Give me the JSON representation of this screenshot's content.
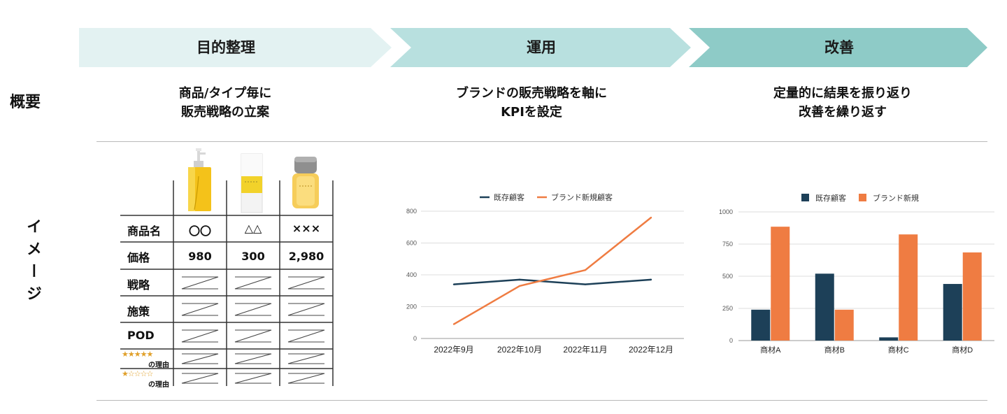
{
  "steps": [
    {
      "label": "目的整理",
      "color": "#e3f2f2"
    },
    {
      "label": "運用",
      "color": "#b8e0df"
    },
    {
      "label": "改善",
      "color": "#8ecbc7"
    }
  ],
  "rows": {
    "overview": "概要",
    "image": "イメージ"
  },
  "summaries": [
    "商品/タイプ毎に\n販売戦略の立案",
    "ブランドの販売戦略を軸に\nKPIを設定",
    "定量的に結果を振り返り\n改善を繰り返す"
  ],
  "product_table": {
    "labels": {
      "name": "商品名",
      "price": "価格",
      "strategy": "戦略",
      "measure": "施策",
      "pod": "POD",
      "five_star_reason": "の理由",
      "one_star_reason": "の理由"
    },
    "five_stars": "★★★★★",
    "one_star": "★☆☆☆☆",
    "products": [
      {
        "name": "〇〇",
        "price": "980",
        "image": "pump-bottle-icon"
      },
      {
        "name": "△△",
        "price": "300",
        "image": "cream-tube-icon"
      },
      {
        "name": "×××",
        "price": "2,980",
        "image": "serum-jar-icon"
      }
    ]
  },
  "chart_data": [
    {
      "type": "line",
      "legend_position": "top",
      "legend": [
        "既存顧客",
        "ブランド新規顧客"
      ],
      "categories": [
        "2022年9月",
        "2022年10月",
        "2022年11月",
        "2022年12月"
      ],
      "series": [
        {
          "name": "既存顧客",
          "color": "#1d4058",
          "values": [
            340,
            370,
            340,
            370
          ]
        },
        {
          "name": "ブランド新規顧客",
          "color": "#ef7c42",
          "values": [
            90,
            330,
            430,
            760
          ]
        }
      ],
      "ylim": [
        0,
        800
      ],
      "yticks": [
        0,
        200,
        400,
        600,
        800
      ],
      "grid": true
    },
    {
      "type": "bar",
      "legend_position": "top",
      "legend": [
        "既存顧客",
        "ブランド新規"
      ],
      "categories": [
        "商材A",
        "商材B",
        "商材C",
        "商材D"
      ],
      "series": [
        {
          "name": "既存顧客",
          "color": "#1d4058",
          "values": [
            240,
            520,
            25,
            440
          ]
        },
        {
          "name": "ブランド新規",
          "color": "#ef7c42",
          "values": [
            885,
            240,
            825,
            685
          ]
        }
      ],
      "ylim": [
        0,
        1000
      ],
      "yticks": [
        0,
        250,
        500,
        750,
        1000
      ],
      "grid": true
    }
  ]
}
